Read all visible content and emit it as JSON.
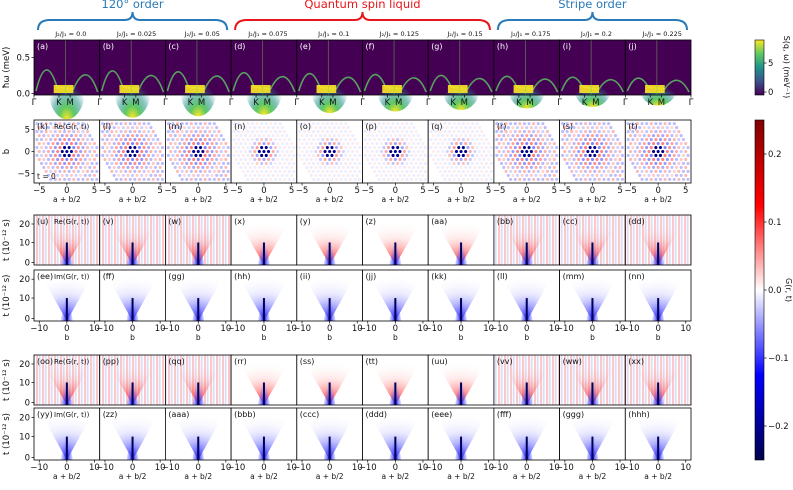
{
  "chart_data": {
    "type": "heatmap",
    "phases": [
      {
        "label": "120° order",
        "color": "#2a7ab8",
        "cols": [
          0,
          2
        ]
      },
      {
        "label": "Quantum spin liquid",
        "color": "#e8161b",
        "cols": [
          3,
          6
        ]
      },
      {
        "label": "Stripe order",
        "color": "#2a7ab8",
        "cols": [
          7,
          9
        ]
      }
    ],
    "j2_values": [
      "0.0",
      "0.025",
      "0.05",
      "0.075",
      "0.1",
      "0.125",
      "0.15",
      "0.175",
      "0.2",
      "0.225"
    ],
    "j2_prefix": "J₂/J₁ = ",
    "rows": [
      {
        "key": "spectrum",
        "letters": [
          "(a)",
          "(b)",
          "(c)",
          "(d)",
          "(e)",
          "(f)",
          "(g)",
          "(h)",
          "(i)",
          "(j)"
        ],
        "quantity": "",
        "ylabel": "ħω (meV)",
        "yticks": [
          "0.0",
          "0.5"
        ],
        "xticks": [
          "Γ",
          "K",
          "M",
          "Γ"
        ],
        "ylim": [
          0,
          0.7
        ]
      },
      {
        "key": "t0",
        "letters": [
          "(k)",
          "(l)",
          "(m)",
          "(n)",
          "(o)",
          "(p)",
          "(q)",
          "(r)",
          "(s)",
          "(t)"
        ],
        "quantity": "Re(G(r, t))",
        "ylabel": "b",
        "yticks": [
          "5",
          "0",
          "−5"
        ],
        "xticks": [
          "−5",
          "0",
          "5"
        ],
        "xlabel": "a + b/2",
        "annotation": "t = 0",
        "xlim": [
          -6,
          6
        ],
        "ylim": [
          -6,
          6
        ]
      },
      {
        "key": "re_b",
        "letters": [
          "(u)",
          "(v)",
          "(w)",
          "(x)",
          "(y)",
          "(z)",
          "(aa)",
          "(bb)",
          "(cc)",
          "(dd)"
        ],
        "quantity": "Re(G(r, t))",
        "ylabel": "t (10⁻¹² s)",
        "yticks": [
          "0",
          "10",
          "20"
        ],
        "ylim": [
          0,
          25
        ]
      },
      {
        "key": "im_b",
        "letters": [
          "(ee)",
          "(ff)",
          "(gg)",
          "(hh)",
          "(ii)",
          "(jj)",
          "(kk)",
          "(ll)",
          "(mm)",
          "(nn)"
        ],
        "quantity": "Im(G(r, t))",
        "ylabel": "t (10⁻¹² s)",
        "yticks": [
          "0",
          "10",
          "20"
        ],
        "xticks": [
          "−10",
          "0",
          "10"
        ],
        "xlabel": "b",
        "xlim": [
          -10,
          10
        ],
        "ylim": [
          0,
          25
        ]
      },
      {
        "key": "re_a",
        "letters": [
          "(oo)",
          "(pp)",
          "(qq)",
          "(rr)",
          "(ss)",
          "(tt)",
          "(uu)",
          "(vv)",
          "(ww)",
          "(xx)"
        ],
        "quantity": "Re(G(r, t))",
        "ylabel": "t (10⁻¹² s)",
        "yticks": [
          "0",
          "10",
          "20"
        ],
        "ylim": [
          0,
          25
        ]
      },
      {
        "key": "im_a",
        "letters": [
          "(yy)",
          "(zz)",
          "(aaa)",
          "(bbb)",
          "(ccc)",
          "(ddd)",
          "(eee)",
          "(fff)",
          "(ggg)",
          "(hhh)"
        ],
        "quantity": "Im(G(r, t))",
        "ylabel": "t (10⁻¹² s)",
        "yticks": [
          "0",
          "10",
          "20"
        ],
        "xticks": [
          "−10",
          "0",
          "10"
        ],
        "xlabel": "a + b/2",
        "xlim": [
          -10,
          10
        ],
        "ylim": [
          0,
          25
        ]
      }
    ],
    "colorbar_top": {
      "label": "S(q, ω) (meV⁻¹)",
      "ticks": [
        "0",
        "5"
      ],
      "range": [
        0,
        8
      ],
      "colormap": "viridis"
    },
    "colorbar_main": {
      "label": "G(r, t)",
      "ticks": [
        "0.2",
        "0.1",
        "0.0",
        "−0.1",
        "−0.2"
      ],
      "range": [
        -0.25,
        0.25
      ],
      "colormap": "seismic"
    }
  }
}
